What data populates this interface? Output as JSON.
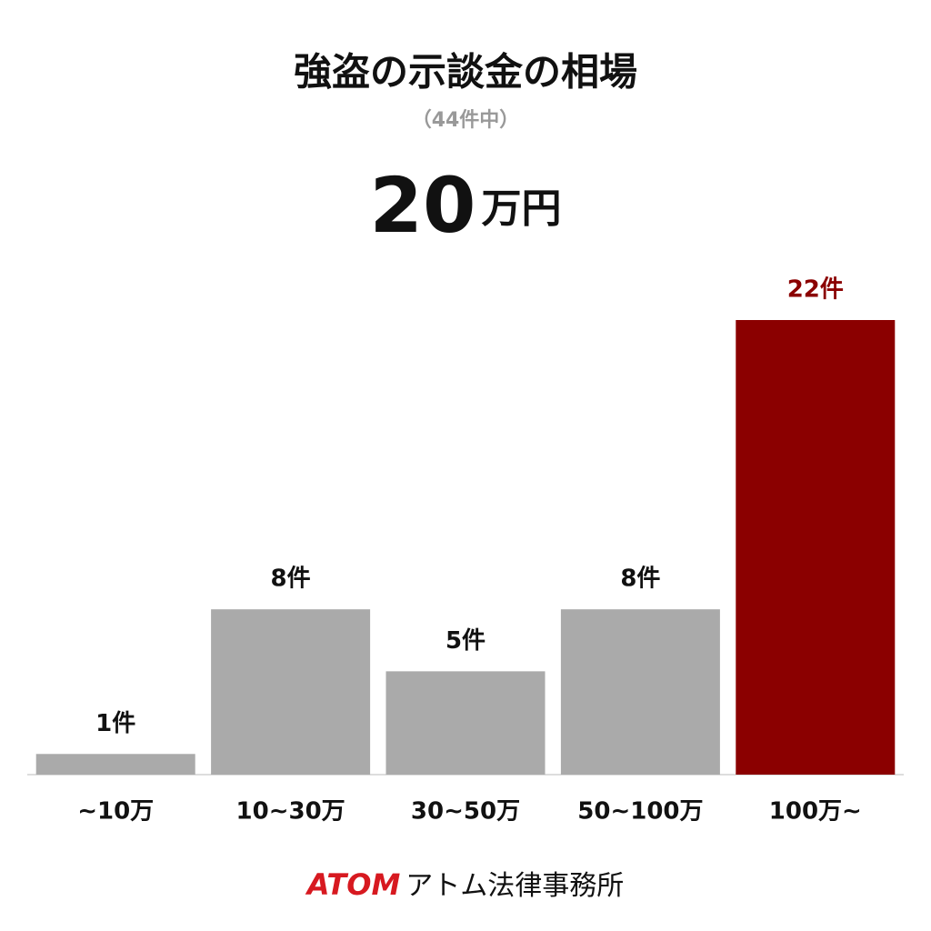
{
  "chart_data": {
    "type": "bar",
    "title": "強盗の示談金の相場",
    "subtitle": "（44件中）",
    "headline": {
      "number": "20",
      "unit": "万円"
    },
    "categories": [
      "~10万",
      "10~30万",
      "30~50万",
      "50~100万",
      "100万~"
    ],
    "values": [
      1,
      8,
      5,
      8,
      22
    ],
    "value_labels": [
      "1件",
      "8件",
      "5件",
      "8件",
      "22件"
    ],
    "colors": [
      "#aaaaaa",
      "#aaaaaa",
      "#aaaaaa",
      "#aaaaaa",
      "#8b0000"
    ],
    "label_colors": [
      "#111111",
      "#111111",
      "#111111",
      "#111111",
      "#8b0000"
    ],
    "footer": {
      "brand": "ATOM",
      "name": "アトム法律事務所"
    }
  }
}
